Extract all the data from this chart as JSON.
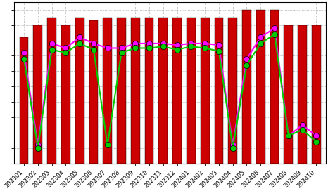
{
  "categories": [
    "202301",
    "202302",
    "202303",
    "202304",
    "202305",
    "202306",
    "202307",
    "202308",
    "202309",
    "202310",
    "202311",
    "202312",
    "202401",
    "202402",
    "202403",
    "202404",
    "202405",
    "202406",
    "202407",
    "202408",
    "202409",
    "202410"
  ],
  "bar_values": [
    82,
    90,
    95,
    90,
    95,
    93,
    95,
    95,
    95,
    95,
    95,
    95,
    95,
    95,
    95,
    95,
    100,
    100,
    100,
    90,
    90,
    90
  ],
  "line1_values": [
    72,
    12,
    78,
    75,
    82,
    78,
    75,
    75,
    78,
    78,
    78,
    77,
    78,
    78,
    77,
    12,
    68,
    82,
    88,
    18,
    25,
    18
  ],
  "line2_values": [
    68,
    10,
    74,
    72,
    78,
    74,
    12,
    72,
    75,
    75,
    76,
    74,
    76,
    75,
    73,
    10,
    64,
    78,
    84,
    18,
    22,
    14
  ],
  "bar_color": "#cc0000",
  "line1_color": "#ff00ff",
  "line2_color": "#00cc00",
  "marker1": "o",
  "marker2": "o",
  "background_color": "#ffffff",
  "grid_color": "#888888",
  "bar_width": 0.65,
  "tick_fontsize": 6.0,
  "line_width": 1.5,
  "marker_size": 6
}
